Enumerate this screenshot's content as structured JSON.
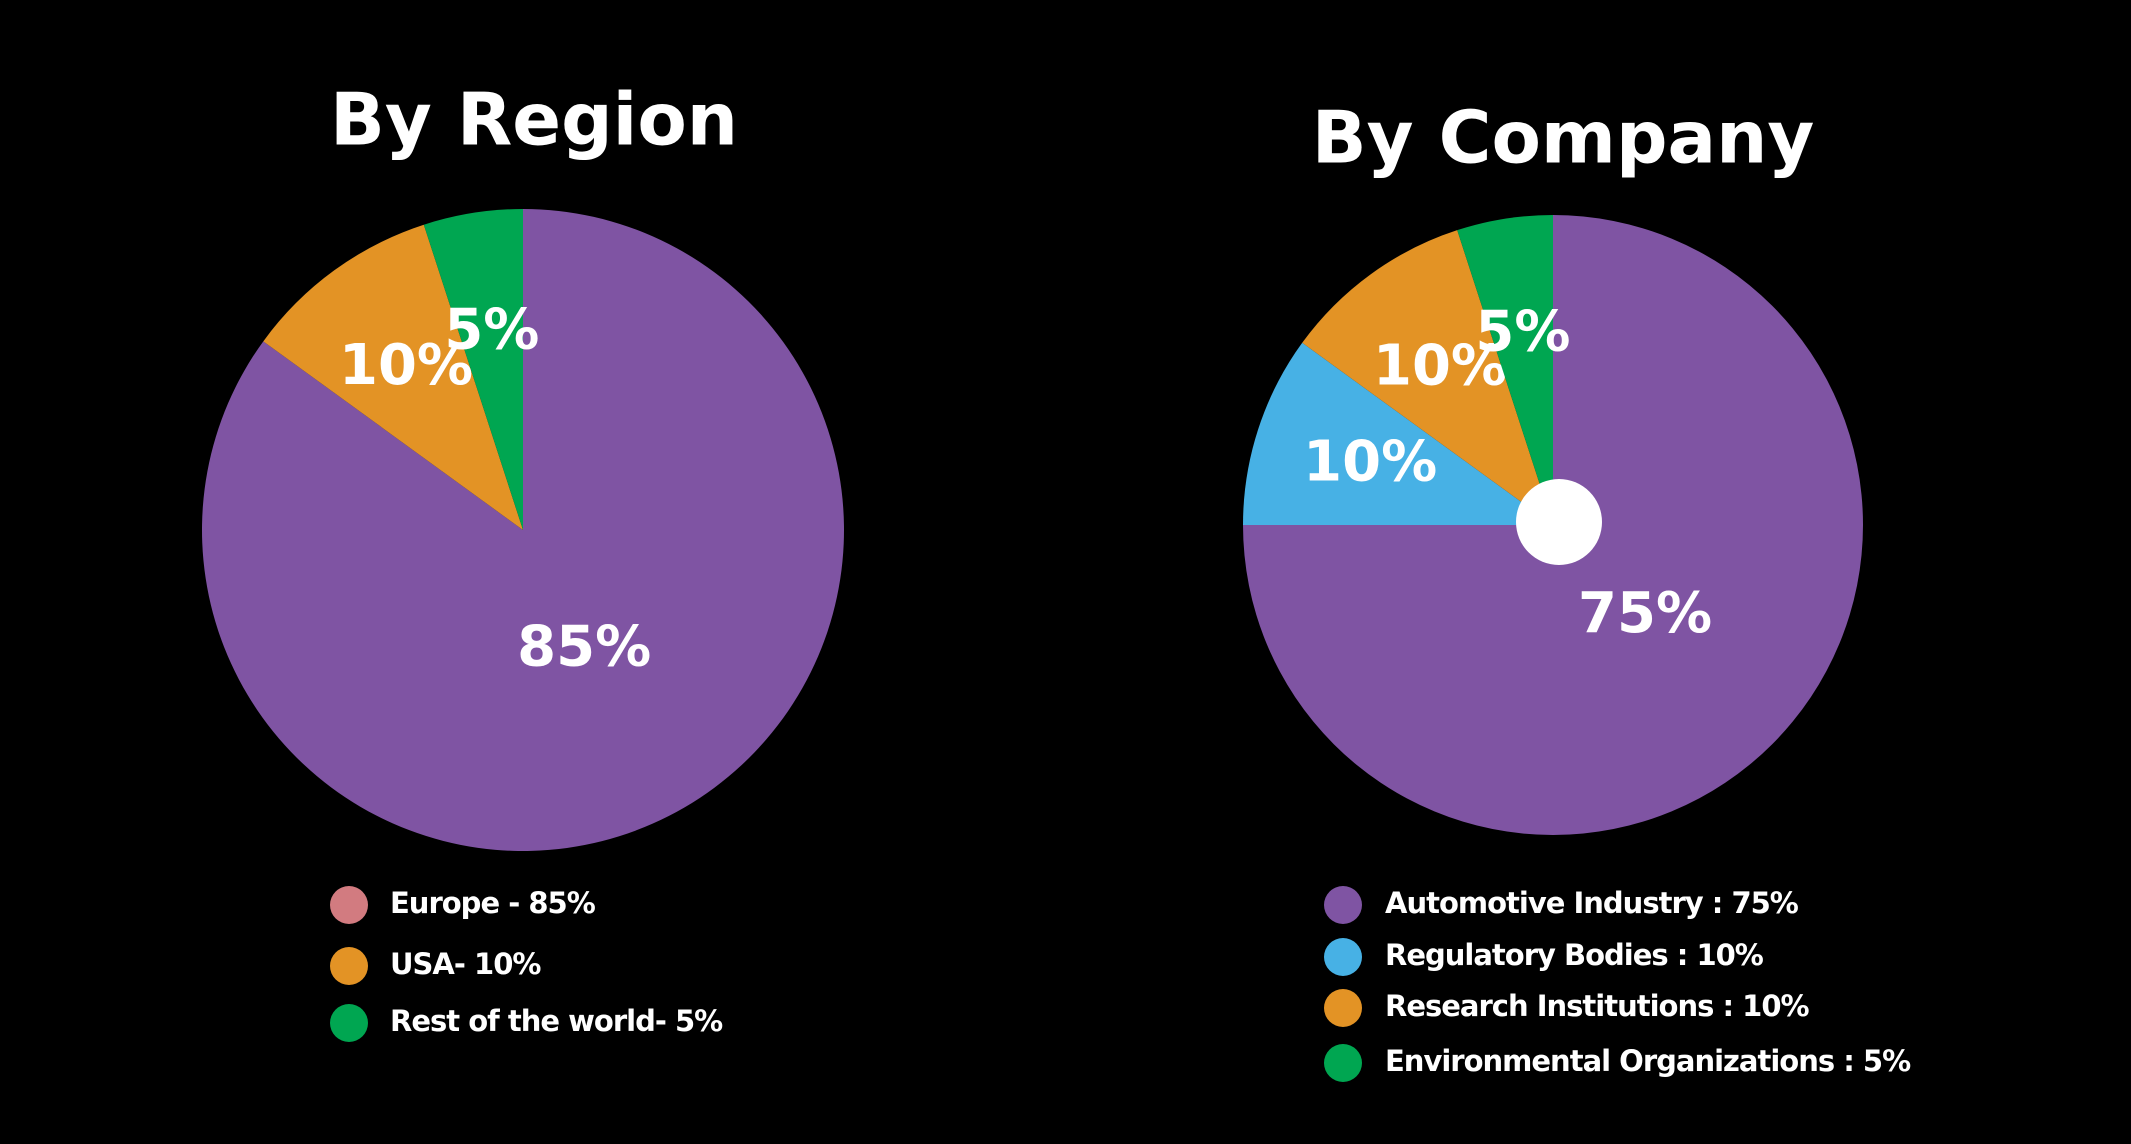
{
  "chart_data": [
    {
      "type": "pie",
      "title": "By Region",
      "categories": [
        "Europe - 85%",
        "USA- 10%",
        "Rest of the world- 5%"
      ],
      "values": [
        85,
        10,
        5
      ],
      "value_labels": [
        "85%",
        "10%",
        "5%"
      ],
      "colors": [
        "#7f54a3",
        "#e39325",
        "#00a651"
      ],
      "legend_colors": [
        "#d27b80",
        "#e39325",
        "#00a651"
      ]
    },
    {
      "type": "pie",
      "title": "By Company",
      "categories": [
        "Automotive Industry : 75%",
        "Regulatory Bodies : 10%",
        "Research Institutions : 10%",
        "Environmental Organizations : 5%"
      ],
      "values": [
        75,
        10,
        10,
        5
      ],
      "value_labels": [
        "75%",
        "10%",
        "10%",
        "5%"
      ],
      "colors": [
        "#7f54a3",
        "#47b1e5",
        "#e39325",
        "#00a651"
      ],
      "legend_colors": [
        "#7f54a3",
        "#47b1e5",
        "#e39325",
        "#00a651"
      ]
    }
  ]
}
